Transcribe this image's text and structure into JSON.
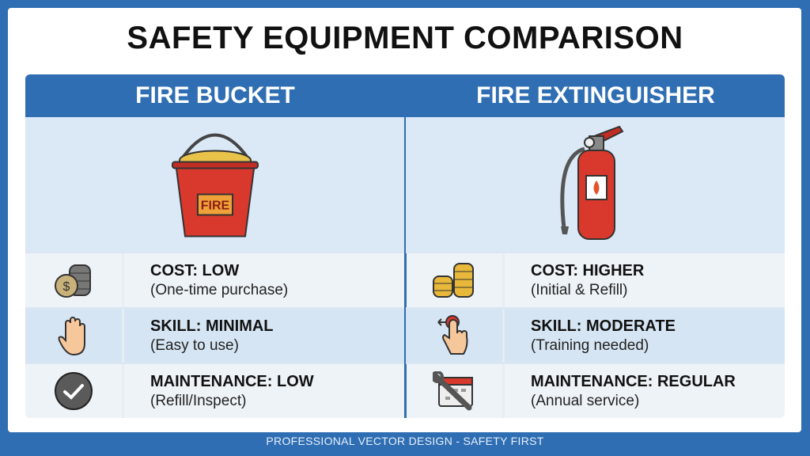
{
  "title": "SAFETY EQUIPMENT COMPARISON",
  "colors": {
    "accent": "#2f6eb3",
    "header_text": "#ffffff",
    "image_bg": "#dbe8f5"
  },
  "columns": [
    {
      "heading": "FIRE BUCKET",
      "image": "fire-bucket",
      "image_label": "FIRE",
      "rows": [
        {
          "icon": "coins-stack-icon",
          "label": "COST: LOW",
          "detail": "(One-time purchase)"
        },
        {
          "icon": "hand-icon",
          "label": "SKILL: MINIMAL",
          "detail": "(Easy to use)"
        },
        {
          "icon": "checkmark-circle-icon",
          "label": "MAINTENANCE: LOW",
          "detail": "(Refill/Inspect)"
        }
      ]
    },
    {
      "heading": "FIRE EXTINGUISHER",
      "image": "fire-extinguisher",
      "rows": [
        {
          "icon": "gold-coins-icon",
          "label": "COST: HIGHER",
          "detail": "(Initial & Refill)"
        },
        {
          "icon": "finger-press-icon",
          "label": "SKILL: MODERATE",
          "detail": "(Training needed)"
        },
        {
          "icon": "wrench-calendar-icon",
          "label": "MAINTENANCE: REGULAR",
          "detail": "(Annual service)"
        }
      ]
    }
  ],
  "footer": "PROFESSIONAL VECTOR DESIGN - SAFETY FIRST"
}
